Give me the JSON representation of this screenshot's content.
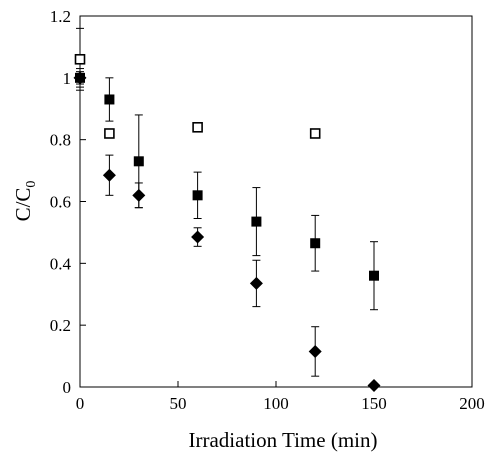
{
  "chart_data": {
    "type": "scatter",
    "xlabel": "Irradiation Time (min)",
    "ylabel": {
      "main": "C/C",
      "sub": "0"
    },
    "xlim": [
      0,
      200
    ],
    "ylim": [
      0,
      1.2
    ],
    "xticks": [
      0,
      50,
      100,
      150,
      200
    ],
    "yticks": [
      0,
      0.2,
      0.4,
      0.6,
      0.8,
      1,
      1.2
    ],
    "xtick_labels": [
      "0",
      "50",
      "100",
      "150",
      "200"
    ],
    "ytick_labels": [
      "0",
      "0.2",
      "0.4",
      "0.6",
      "0.8",
      "1",
      "1.2"
    ],
    "grid": false,
    "series": [
      {
        "marker": "open-square",
        "color": "#000000",
        "points": [
          {
            "x": 0,
            "y": 1.06,
            "err": 0.1
          },
          {
            "x": 15,
            "y": 0.82,
            "err": 0.01
          },
          {
            "x": 60,
            "y": 0.84,
            "err": 0.01
          },
          {
            "x": 120,
            "y": 0.82,
            "err": 0.01
          }
        ]
      },
      {
        "marker": "filled-square",
        "color": "#000000",
        "points": [
          {
            "x": 0,
            "y": 1.0,
            "err": 0.03
          },
          {
            "x": 15,
            "y": 0.93,
            "err": 0.07
          },
          {
            "x": 30,
            "y": 0.73,
            "err": 0.15
          },
          {
            "x": 60,
            "y": 0.62,
            "err": 0.075
          },
          {
            "x": 90,
            "y": 0.535,
            "err": 0.11
          },
          {
            "x": 120,
            "y": 0.465,
            "err": 0.09
          },
          {
            "x": 150,
            "y": 0.36,
            "err": 0.11
          }
        ]
      },
      {
        "marker": "filled-diamond",
        "color": "#000000",
        "points": [
          {
            "x": 0,
            "y": 1.0,
            "err": 0.02
          },
          {
            "x": 15,
            "y": 0.685,
            "err": 0.065
          },
          {
            "x": 30,
            "y": 0.62,
            "err": 0.04
          },
          {
            "x": 60,
            "y": 0.485,
            "err": 0.03
          },
          {
            "x": 90,
            "y": 0.335,
            "err": 0.075
          },
          {
            "x": 120,
            "y": 0.115,
            "err": 0.08
          },
          {
            "x": 150,
            "y": 0.005,
            "err": 0
          }
        ]
      }
    ]
  }
}
